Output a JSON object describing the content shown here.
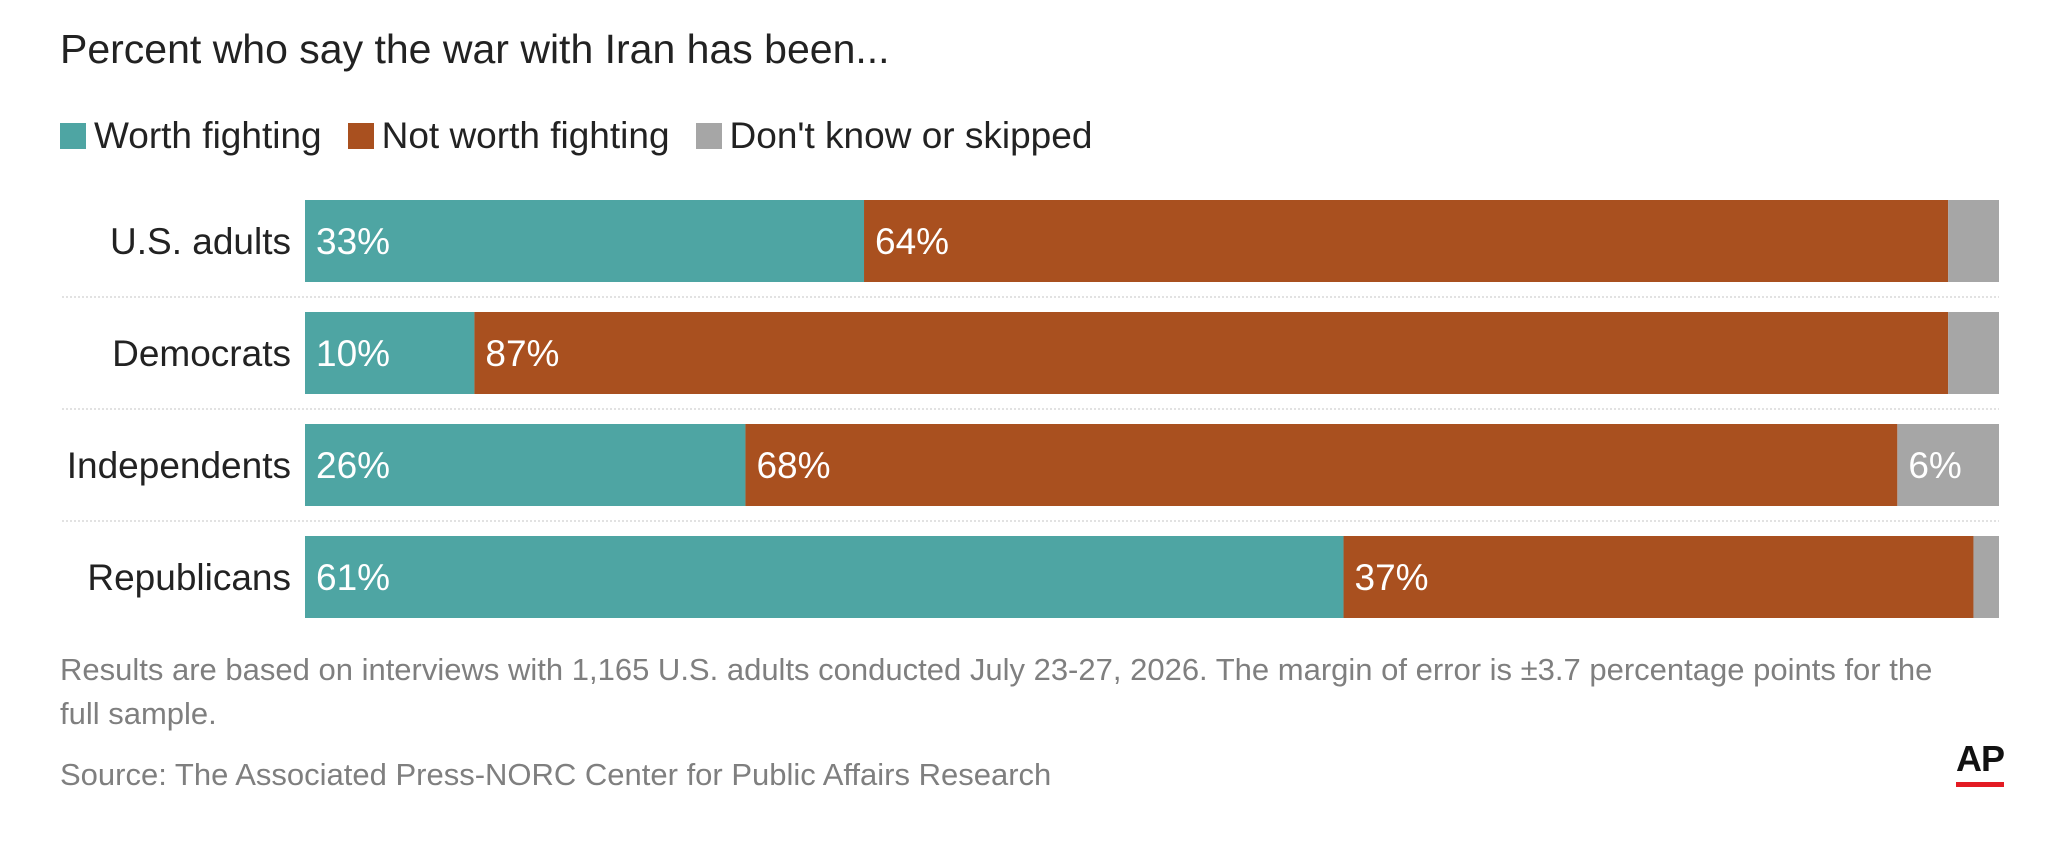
{
  "subtitle": "Percent who say the war with Iran has been...",
  "legend": [
    {
      "label": "Worth fighting",
      "color": "#4ea5a3"
    },
    {
      "label": "Not worth fighting",
      "color": "#a9501f"
    },
    {
      "label": "Don't know or skipped",
      "color": "#a6a6a6"
    }
  ],
  "chart_data": {
    "type": "bar",
    "orientation": "horizontal",
    "stacked": true,
    "categories": [
      "U.S. adults",
      "Democrats",
      "Independents",
      "Republicans"
    ],
    "xlim": [
      0,
      100
    ],
    "series": [
      {
        "name": "Worth fighting",
        "color": "#4ea5a3",
        "values": [
          33,
          10,
          26,
          61
        ],
        "labels": [
          "33%",
          "10%",
          "26%",
          "61%"
        ]
      },
      {
        "name": "Not worth fighting",
        "color": "#a9501f",
        "values": [
          64,
          87,
          68,
          37
        ],
        "labels": [
          "64%",
          "87%",
          "68%",
          "37%"
        ]
      },
      {
        "name": "Don't know or skipped",
        "color": "#a6a6a6",
        "values": [
          3,
          3,
          6,
          1.5
        ],
        "labels": [
          "",
          "",
          "6%",
          ""
        ]
      }
    ]
  },
  "note": "Results are based on interviews with 1,165 U.S. adults conducted July 23-27, 2026. The margin of error is ±3.7 percentage points for the full sample.",
  "source": "Source: The Associated Press-NORC Center for Public Affairs Research",
  "logo": {
    "text": "AP",
    "accent_color": "#e31b23"
  }
}
